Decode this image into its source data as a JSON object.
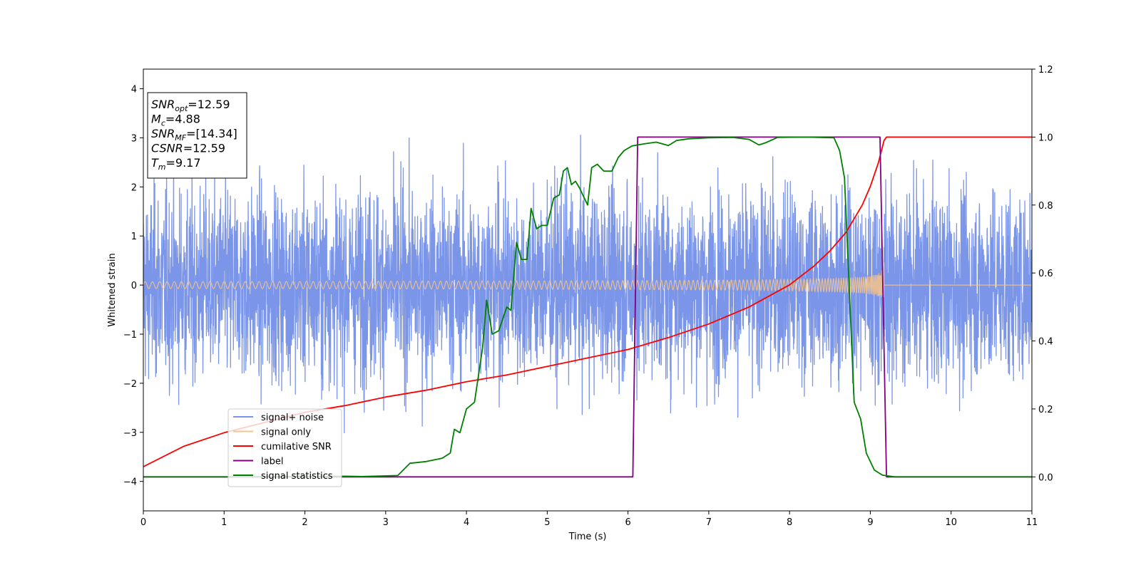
{
  "chart_data": {
    "type": "line",
    "title": "",
    "xlabel": "Time (s)",
    "ylabel": "Whitened strain",
    "y2label": "",
    "xlim": [
      0,
      11
    ],
    "ylim": [
      -4.6,
      4.4
    ],
    "y2lim": [
      -0.1,
      1.2
    ],
    "x_ticks": [
      0,
      1,
      2,
      3,
      4,
      5,
      6,
      7,
      8,
      9,
      10,
      11
    ],
    "y_ticks": [
      -4,
      -3,
      -2,
      -1,
      0,
      1,
      2,
      3,
      4
    ],
    "y2_ticks": [
      0.0,
      0.2,
      0.4,
      0.6,
      0.8,
      1.0,
      1.2
    ],
    "grid": false,
    "legend_position": "lower-left",
    "annotation": {
      "lines": [
        {
          "main": "SNR",
          "sub": "opt",
          "rest": "=12.59"
        },
        {
          "main": "M",
          "sub": "c",
          "rest": "=4.88"
        },
        {
          "main": "SNR",
          "sub": "MF",
          "rest": "=[14.34]"
        },
        {
          "main": "CSNR",
          "sub": "",
          "rest": "=12.59"
        },
        {
          "main": "T",
          "sub": "m",
          "rest": "=9.17"
        }
      ]
    },
    "series": [
      {
        "name": "signal+ noise",
        "color": "#7b95e8",
        "axis": "left",
        "kind": "noise",
        "x_range": [
          0,
          11
        ],
        "std": 1.0,
        "max": 3.9,
        "min": -4.15
      },
      {
        "name": "signal only",
        "color": "#f7c48a",
        "axis": "left",
        "kind": "chirp",
        "x_range": [
          0,
          9.17
        ],
        "start_amplitude": 0.07,
        "end_amplitude": 1.0,
        "merger_time": 9.17
      },
      {
        "name": "cumilative SNR",
        "color": "#ff0000",
        "axis": "right",
        "x": [
          0,
          0.5,
          1,
          1.5,
          2,
          2.5,
          3,
          3.5,
          4,
          4.5,
          5,
          5.5,
          6,
          6.5,
          7,
          7.5,
          8,
          8.3,
          8.5,
          8.7,
          8.9,
          9.0,
          9.1,
          9.17,
          9.2,
          11
        ],
        "y": [
          0.03,
          0.09,
          0.13,
          0.16,
          0.19,
          0.21,
          0.235,
          0.255,
          0.28,
          0.3,
          0.325,
          0.35,
          0.375,
          0.41,
          0.45,
          0.5,
          0.565,
          0.62,
          0.665,
          0.72,
          0.8,
          0.855,
          0.925,
          0.99,
          1.0,
          1.0
        ]
      },
      {
        "name": "label",
        "color": "#800080",
        "axis": "right",
        "x": [
          0,
          6.06,
          6.12,
          9.12,
          9.2,
          11
        ],
        "y": [
          0,
          0,
          1,
          1,
          0,
          0
        ]
      },
      {
        "name": "signal statistics",
        "color": "#008000",
        "axis": "right",
        "x": [
          0,
          1,
          2,
          2.5,
          2.7,
          3.0,
          3.15,
          3.3,
          3.5,
          3.7,
          3.8,
          3.85,
          3.92,
          4.0,
          4.1,
          4.2,
          4.25,
          4.32,
          4.4,
          4.5,
          4.55,
          4.62,
          4.68,
          4.75,
          4.8,
          4.87,
          4.93,
          5.0,
          5.08,
          5.15,
          5.2,
          5.25,
          5.3,
          5.35,
          5.4,
          5.5,
          5.55,
          5.62,
          5.7,
          5.8,
          5.88,
          5.95,
          6.05,
          6.2,
          6.35,
          6.5,
          6.6,
          6.75,
          7.0,
          7.3,
          7.5,
          7.62,
          7.7,
          7.85,
          8.2,
          8.55,
          8.62,
          8.68,
          8.72,
          8.8,
          8.88,
          8.95,
          9.05,
          9.15,
          9.3,
          11
        ],
        "y": [
          0.0,
          0.0,
          0.001,
          0.002,
          0.001,
          0.003,
          0.004,
          0.04,
          0.045,
          0.055,
          0.07,
          0.14,
          0.13,
          0.2,
          0.22,
          0.38,
          0.52,
          0.42,
          0.43,
          0.5,
          0.49,
          0.69,
          0.64,
          0.64,
          0.79,
          0.73,
          0.74,
          0.74,
          0.82,
          0.83,
          0.9,
          0.91,
          0.86,
          0.87,
          0.85,
          0.8,
          0.91,
          0.92,
          0.9,
          0.9,
          0.94,
          0.96,
          0.974,
          0.98,
          0.985,
          0.975,
          0.99,
          0.995,
          0.998,
          0.999,
          0.993,
          0.977,
          0.983,
          0.999,
          1.0,
          0.998,
          0.96,
          0.88,
          0.66,
          0.22,
          0.17,
          0.07,
          0.02,
          0.005,
          0.0,
          0.0
        ]
      }
    ]
  }
}
